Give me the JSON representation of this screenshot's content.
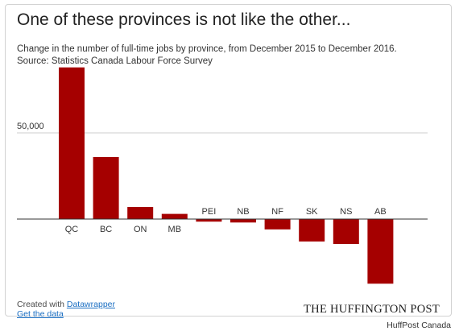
{
  "header": {
    "title": "One of these provinces is not like the other...",
    "subtitle_line1": "Change in the number of full-time jobs by province, from December 2015 to December 2016.",
    "subtitle_line2": "Source: Statistics Canada Labour Force Survey"
  },
  "footer": {
    "created_with": "Created with ",
    "datawrapper_link": "Datawrapper",
    "get_data_link": "Get the data",
    "brand": "THE HUFFINGTON POST",
    "credit": "HuffPost Canada"
  },
  "colors": {
    "bar": "#a50000",
    "grid": "#cccccc",
    "axis": "#333333",
    "text": "#333333"
  },
  "chart_data": {
    "type": "bar",
    "categories": [
      "QC",
      "BC",
      "ON",
      "MB",
      "PEI",
      "NB",
      "NF",
      "SK",
      "NS",
      "AB"
    ],
    "values": [
      88000,
      36000,
      7000,
      3000,
      -1500,
      -2000,
      -6000,
      -13000,
      -14500,
      -37500
    ],
    "title": "One of these provinces is not like the other...",
    "xlabel": "",
    "ylabel": "",
    "yticks": [
      50000
    ],
    "ytick_labels": [
      "50,000"
    ],
    "ylim": [
      -40000,
      90000
    ],
    "grid": true
  }
}
